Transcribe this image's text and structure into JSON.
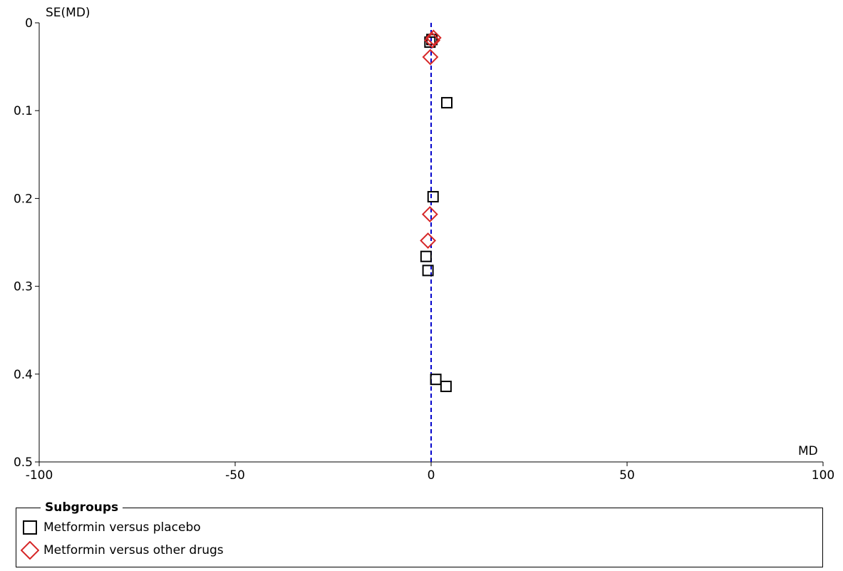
{
  "chart_data": {
    "type": "scatter",
    "title": "",
    "xlabel": "MD",
    "ylabel": "SE(MD)",
    "xlim": [
      -100,
      100
    ],
    "ylim": [
      0,
      0.5
    ],
    "y_inverted": true,
    "x_ticks": [
      "-100",
      "-50",
      "0",
      "50",
      "100"
    ],
    "x_tick_values": [
      -100,
      -50,
      0,
      50,
      100
    ],
    "y_ticks": [
      "0",
      "0.1",
      "0.2",
      "0.3",
      "0.4",
      "0.5"
    ],
    "y_tick_values": [
      0,
      0.1,
      0.2,
      0.3,
      0.4,
      0.5
    ],
    "reference_line": {
      "x": 0,
      "style": "dashed",
      "color": "#0000cc"
    },
    "grid": false,
    "legend_placement": "bottom",
    "series": [
      {
        "name": "Metformin versus placebo",
        "marker": "square",
        "color": "#000000",
        "points": [
          {
            "x": 0.2,
            "y": 0.019
          },
          {
            "x": -0.3,
            "y": 0.022
          },
          {
            "x": 4.0,
            "y": 0.091
          },
          {
            "x": 0.5,
            "y": 0.198
          },
          {
            "x": -1.3,
            "y": 0.266
          },
          {
            "x": -0.8,
            "y": 0.282
          },
          {
            "x": 1.2,
            "y": 0.406
          },
          {
            "x": 3.8,
            "y": 0.414
          }
        ]
      },
      {
        "name": "Metformin versus other drugs",
        "marker": "diamond",
        "color": "#d62728",
        "points": [
          {
            "x": 0.6,
            "y": 0.017
          },
          {
            "x": 0.3,
            "y": 0.02
          },
          {
            "x": -0.2,
            "y": 0.039
          },
          {
            "x": -0.3,
            "y": 0.218
          },
          {
            "x": -0.8,
            "y": 0.248
          }
        ]
      }
    ]
  },
  "legend": {
    "title": "Subgroups",
    "items": [
      {
        "label": "Metformin versus placebo",
        "marker": "square",
        "color": "#000000"
      },
      {
        "label": "Metformin versus other drugs",
        "marker": "diamond",
        "color": "#d62728"
      }
    ]
  }
}
